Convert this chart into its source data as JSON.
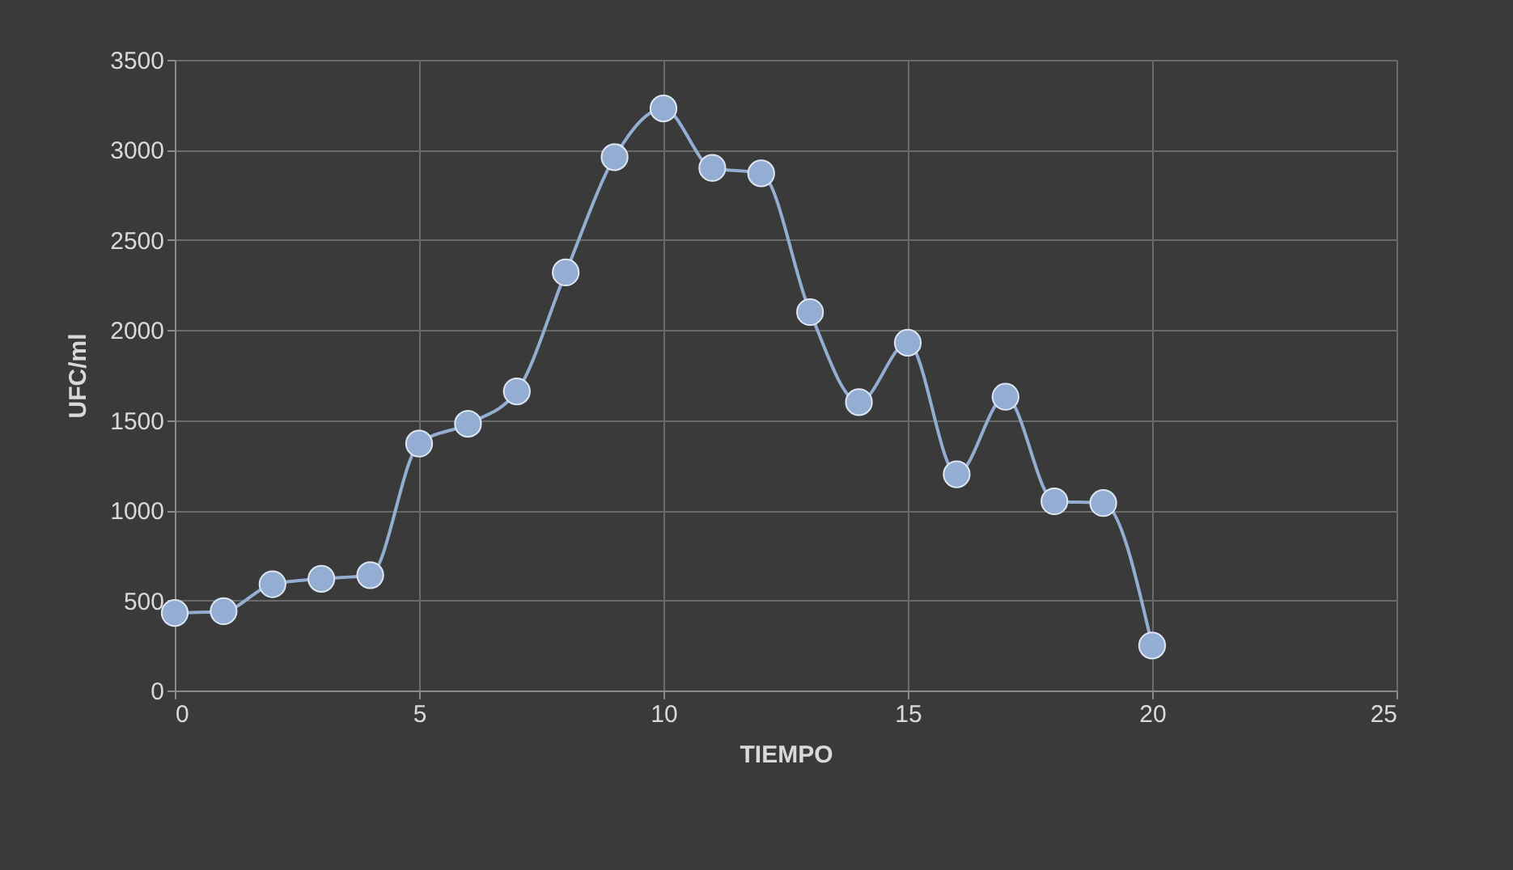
{
  "chart_data": {
    "type": "line",
    "xlabel": "TIEMPO",
    "ylabel": "UFC/ml",
    "x": [
      0,
      1,
      2,
      3,
      4,
      5,
      6,
      7,
      8,
      9,
      10,
      11,
      12,
      13,
      14,
      15,
      16,
      17,
      18,
      19,
      20
    ],
    "series": [
      {
        "color": "#94aed3",
        "values": [
          430,
          440,
          590,
          620,
          640,
          1370,
          1480,
          1660,
          2320,
          2960,
          3230,
          2900,
          2870,
          2100,
          1600,
          1930,
          1200,
          1630,
          1050,
          1040,
          250
        ]
      }
    ],
    "xlim": [
      0,
      25
    ],
    "xticks": [
      0,
      5,
      10,
      15,
      20,
      25
    ],
    "ylim": [
      0,
      3500
    ],
    "yticks": [
      0,
      500,
      1000,
      1500,
      2000,
      2500,
      3000,
      3500
    ],
    "grid": true,
    "marker": "circle",
    "line_style": "solid"
  }
}
